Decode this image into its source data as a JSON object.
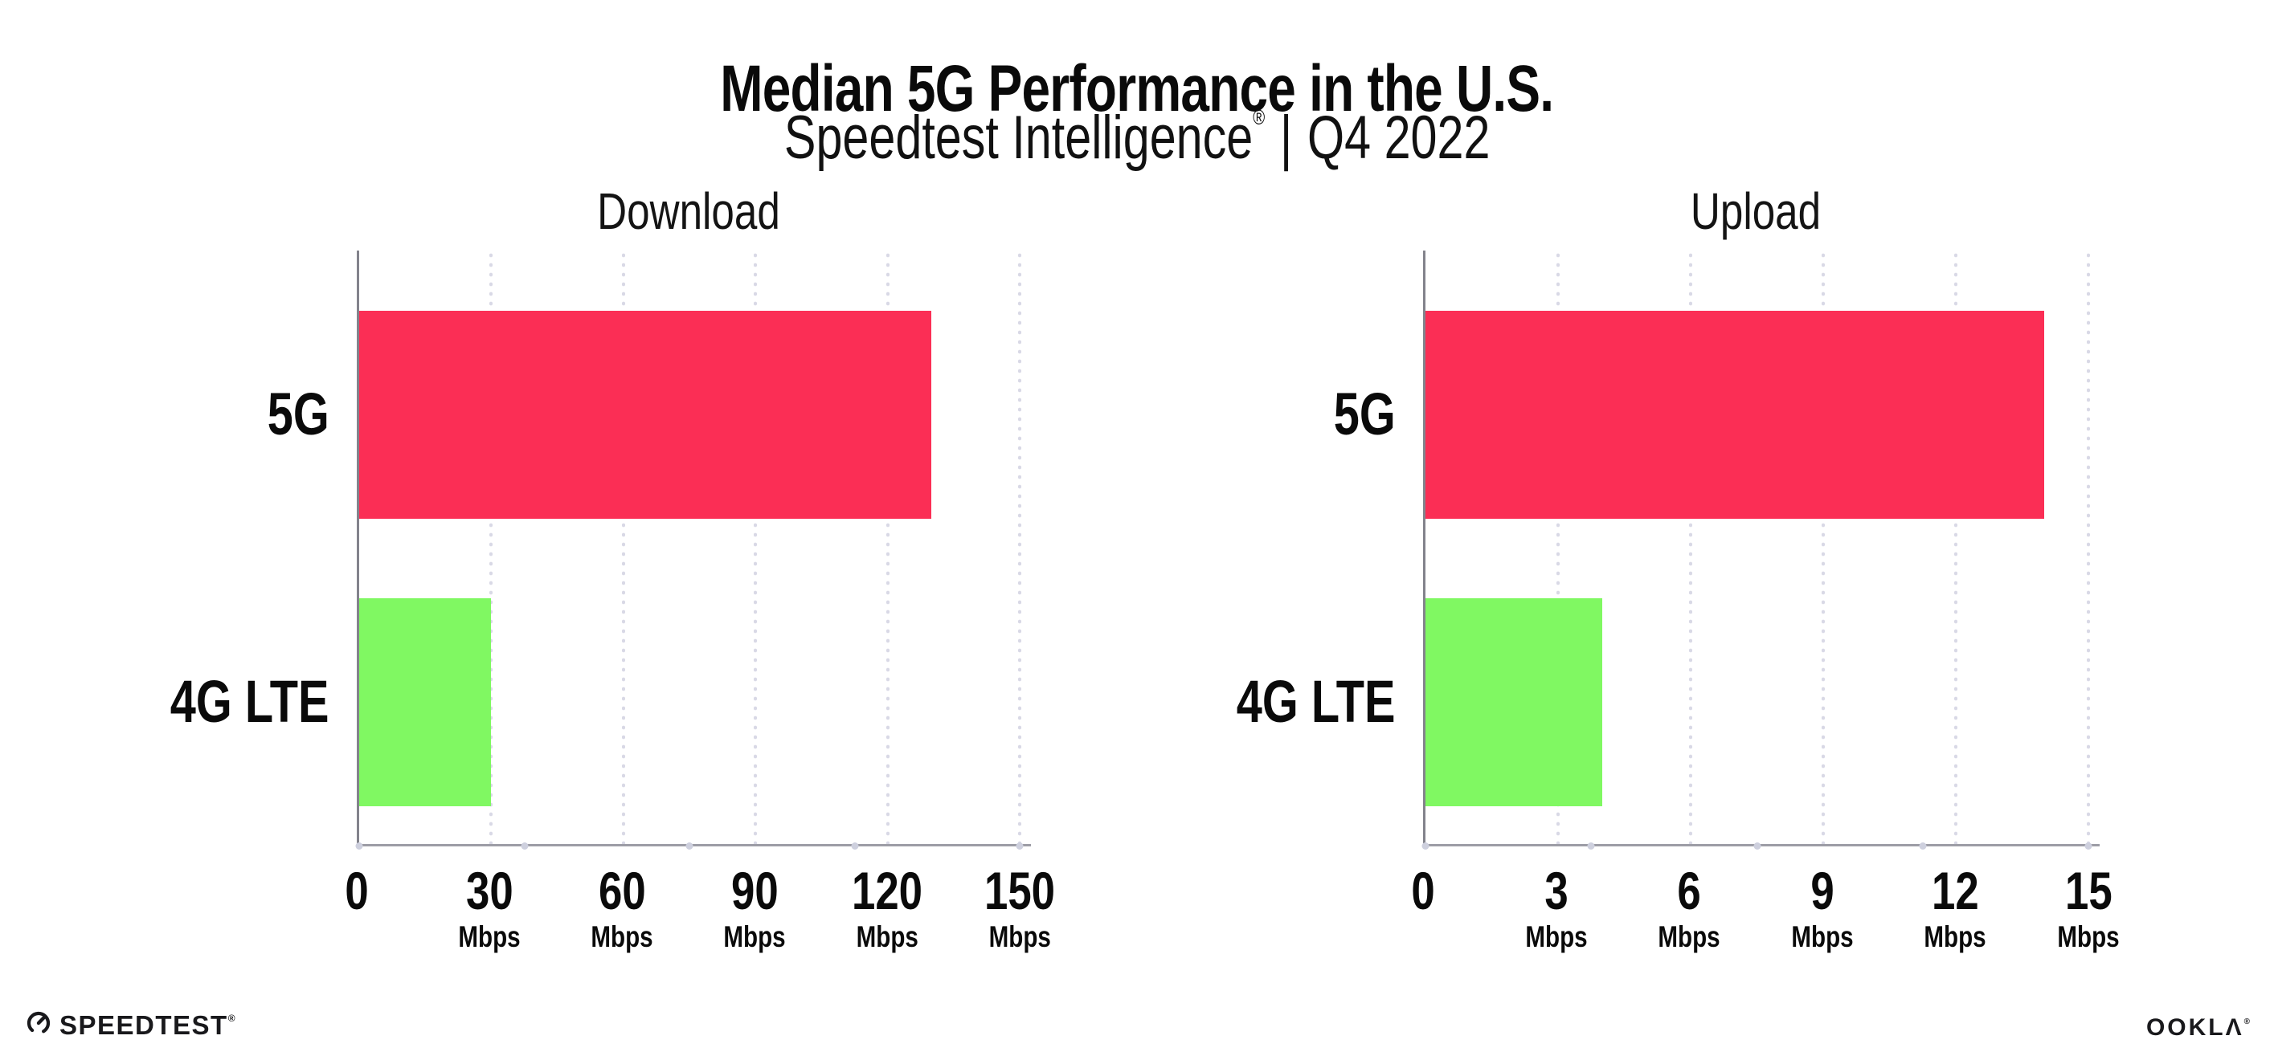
{
  "header": {
    "title": "Median 5G Performance in the U.S.",
    "subtitle_brand": "Speedtest Intelligence",
    "subtitle_reg": "®",
    "subtitle_sep": "|",
    "subtitle_period": "Q4 2022"
  },
  "chart_data": [
    {
      "type": "bar",
      "orientation": "horizontal",
      "title": "Download",
      "categories": [
        "5G",
        "4G LTE"
      ],
      "values": [
        130,
        30
      ],
      "unit": "Mbps",
      "xlim": [
        0,
        150
      ],
      "xticks": [
        0,
        30,
        60,
        90,
        120,
        150
      ],
      "tick_unit": "Mbps",
      "bar_colors": [
        "#fb2e55",
        "#80f862"
      ],
      "grid": "dotted-vertical-at-labeled-ticks",
      "legend": "none"
    },
    {
      "type": "bar",
      "orientation": "horizontal",
      "title": "Upload",
      "categories": [
        "5G",
        "4G LTE"
      ],
      "values": [
        14,
        4
      ],
      "unit": "Mbps",
      "xlim": [
        0,
        15
      ],
      "xticks": [
        0,
        3,
        6,
        9,
        12,
        15
      ],
      "tick_unit": "Mbps",
      "bar_colors": [
        "#fb2e55",
        "#80f862"
      ],
      "grid": "dotted-vertical-at-labeled-ticks",
      "legend": "none"
    }
  ],
  "colors": {
    "bar_5g": "#fb2e55",
    "bar_4g_lte": "#80f862",
    "axis_line": "#9d9da6",
    "y_axis_line": "#83838c",
    "grid_dot": "#d9d9e6",
    "axis_quarter_dot": "#ced0de",
    "text": "#0a0a0a",
    "background": "#ffffff"
  },
  "footer": {
    "speedtest_label": "SPEEDTEST",
    "speedtest_mark": "®",
    "ookla_label": "OOKLΛ",
    "ookla_mark": "®"
  }
}
